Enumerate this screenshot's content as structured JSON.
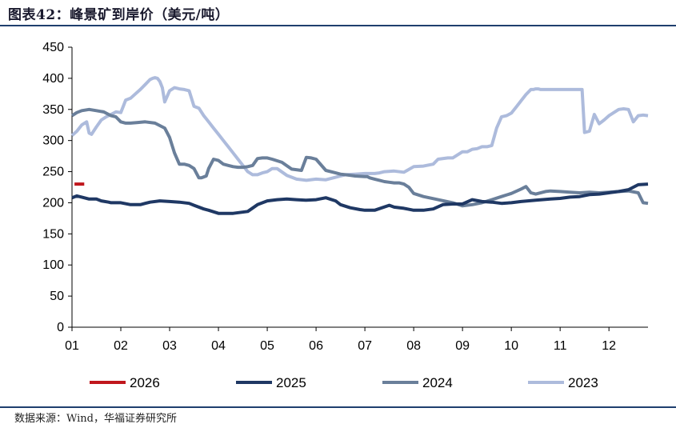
{
  "title": "图表42：峰景矿到岸价（美元/吨）",
  "source": "数据来源：Wind，华福证券研究所",
  "chart_data": {
    "type": "line",
    "title": "峰景矿到岸价（美元/吨）",
    "xlabel": "",
    "ylabel": "",
    "xlim": [
      0,
      11.8
    ],
    "ylim": [
      0,
      450
    ],
    "y_ticks": [
      0,
      50,
      100,
      150,
      200,
      250,
      300,
      350,
      400,
      450
    ],
    "x_tick_labels": [
      "01",
      "02",
      "03",
      "04",
      "05",
      "06",
      "07",
      "08",
      "09",
      "10",
      "11",
      "12"
    ],
    "legend_position": "bottom",
    "series": [
      {
        "name": "2026",
        "color": "#c0171d",
        "x": [
          0.05,
          0.25
        ],
        "y": [
          230,
          230
        ]
      },
      {
        "name": "2025",
        "color": "#1f3864",
        "x": [
          0,
          0.1,
          0.2,
          0.35,
          0.5,
          0.6,
          0.75,
          0.8,
          1.0,
          1.2,
          1.4,
          1.5,
          1.6,
          1.8,
          2.0,
          2.2,
          2.4,
          2.5,
          2.7,
          2.8,
          3.0,
          3.1,
          3.3,
          3.6,
          3.8,
          4.0,
          4.2,
          4.4,
          4.6,
          4.8,
          5.0,
          5.2,
          5.4,
          5.5,
          5.7,
          5.9,
          6.0,
          6.2,
          6.5,
          6.6,
          6.8,
          7.0,
          7.2,
          7.4,
          7.6,
          7.8,
          8.0,
          8.2,
          8.4,
          8.6,
          8.8,
          9.0,
          9.2,
          9.5,
          9.8,
          10.0,
          10.2,
          10.4,
          10.6,
          10.8,
          11.0,
          11.2,
          11.4,
          11.6,
          11.8
        ],
        "y": [
          208,
          211,
          209,
          206,
          206,
          203,
          201,
          200,
          200,
          197,
          197,
          199,
          201,
          203,
          202,
          201,
          199,
          196,
          190,
          188,
          183,
          183,
          183,
          186,
          197,
          203,
          205,
          206,
          205,
          204,
          205,
          208,
          203,
          197,
          192,
          189,
          188,
          188,
          196,
          193,
          191,
          188,
          188,
          190,
          197,
          198,
          198,
          205,
          202,
          201,
          199,
          200,
          202,
          204,
          206,
          207,
          209,
          210,
          213,
          214,
          216,
          218,
          221,
          229,
          230
        ]
      },
      {
        "name": "2024",
        "color": "#6a7f9a",
        "x": [
          0,
          0.1,
          0.2,
          0.35,
          0.5,
          0.65,
          0.8,
          0.9,
          1.0,
          1.1,
          1.2,
          1.35,
          1.5,
          1.7,
          1.9,
          2.0,
          2.1,
          2.2,
          2.3,
          2.4,
          2.5,
          2.6,
          2.65,
          2.75,
          2.8,
          2.9,
          3.0,
          3.1,
          3.2,
          3.3,
          3.4,
          3.5,
          3.6,
          3.7,
          3.8,
          3.9,
          4.0,
          4.1,
          4.3,
          4.5,
          4.7,
          4.8,
          4.9,
          5.0,
          5.2,
          5.4,
          5.5,
          5.6,
          5.7,
          5.8,
          6.0,
          6.05,
          6.1,
          6.2,
          6.3,
          6.4,
          6.5,
          6.6,
          6.7,
          6.8,
          6.9,
          7.0,
          7.2,
          7.5,
          7.8,
          8.0,
          8.2,
          8.4,
          8.6,
          8.8,
          9.0,
          9.2,
          9.3,
          9.4,
          9.5,
          9.7,
          9.8,
          10.0,
          10.2,
          10.4,
          10.6,
          10.8,
          11.0,
          11.2,
          11.4,
          11.6,
          11.7,
          11.8
        ],
        "y": [
          340,
          345,
          348,
          350,
          348,
          346,
          340,
          338,
          330,
          328,
          328,
          329,
          330,
          328,
          320,
          305,
          280,
          262,
          262,
          260,
          255,
          240,
          240,
          243,
          255,
          270,
          268,
          262,
          260,
          258,
          257,
          257,
          258,
          260,
          271,
          272,
          272,
          270,
          265,
          254,
          252,
          273,
          272,
          270,
          252,
          248,
          246,
          245,
          244,
          243,
          242,
          242,
          240,
          238,
          236,
          234,
          233,
          232,
          232,
          230,
          225,
          215,
          210,
          205,
          200,
          195,
          197,
          200,
          205,
          210,
          215,
          222,
          226,
          216,
          214,
          218,
          219,
          218,
          217,
          216,
          217,
          216,
          217,
          218,
          219,
          216,
          200,
          199
        ]
      },
      {
        "name": "2023",
        "color": "#adbbdc",
        "x": [
          0,
          0.1,
          0.2,
          0.3,
          0.35,
          0.4,
          0.5,
          0.6,
          0.7,
          0.8,
          0.9,
          1.0,
          1.05,
          1.1,
          1.2,
          1.3,
          1.4,
          1.5,
          1.6,
          1.65,
          1.7,
          1.75,
          1.8,
          1.85,
          1.9,
          2.0,
          2.1,
          2.2,
          2.3,
          2.4,
          2.5,
          2.6,
          2.7,
          2.8,
          2.9,
          3.0,
          3.1,
          3.2,
          3.3,
          3.4,
          3.5,
          3.6,
          3.7,
          3.8,
          3.9,
          4.0,
          4.1,
          4.2,
          4.4,
          4.6,
          4.8,
          5.0,
          5.2,
          5.4,
          5.5,
          5.6,
          5.8,
          6.0,
          6.2,
          6.3,
          6.4,
          6.6,
          6.8,
          7.0,
          7.2,
          7.4,
          7.5,
          7.7,
          7.8,
          8.0,
          8.1,
          8.2,
          8.3,
          8.4,
          8.5,
          8.6,
          8.7,
          8.8,
          8.9,
          9.0,
          9.1,
          9.2,
          9.3,
          9.4,
          9.45,
          9.5,
          9.55,
          9.6,
          9.7,
          9.8,
          9.9,
          10.0,
          10.1,
          10.2,
          10.3,
          10.4,
          10.45,
          10.5,
          10.6,
          10.7,
          10.8,
          10.9,
          11.0,
          11.1,
          11.2,
          11.3,
          11.4,
          11.5,
          11.6,
          11.7,
          11.8
        ],
        "y": [
          308,
          315,
          325,
          330,
          312,
          310,
          322,
          333,
          338,
          342,
          346,
          345,
          355,
          365,
          368,
          375,
          382,
          390,
          398,
          400,
          401,
          400,
          395,
          385,
          362,
          380,
          385,
          383,
          382,
          380,
          355,
          352,
          340,
          330,
          320,
          310,
          300,
          290,
          280,
          270,
          260,
          250,
          245,
          245,
          248,
          250,
          255,
          255,
          244,
          238,
          236,
          238,
          237,
          241,
          243,
          245,
          246,
          247,
          247,
          248,
          250,
          251,
          249,
          258,
          259,
          262,
          270,
          272,
          272,
          282,
          282,
          286,
          287,
          290,
          290,
          292,
          320,
          338,
          340,
          344,
          354,
          364,
          374,
          382,
          382,
          383,
          383,
          382,
          382,
          382,
          382,
          382,
          382,
          382,
          382,
          382,
          382,
          313,
          315,
          342,
          327,
          333,
          340,
          345,
          350,
          351,
          350,
          330,
          340,
          341,
          340
        ]
      }
    ]
  }
}
